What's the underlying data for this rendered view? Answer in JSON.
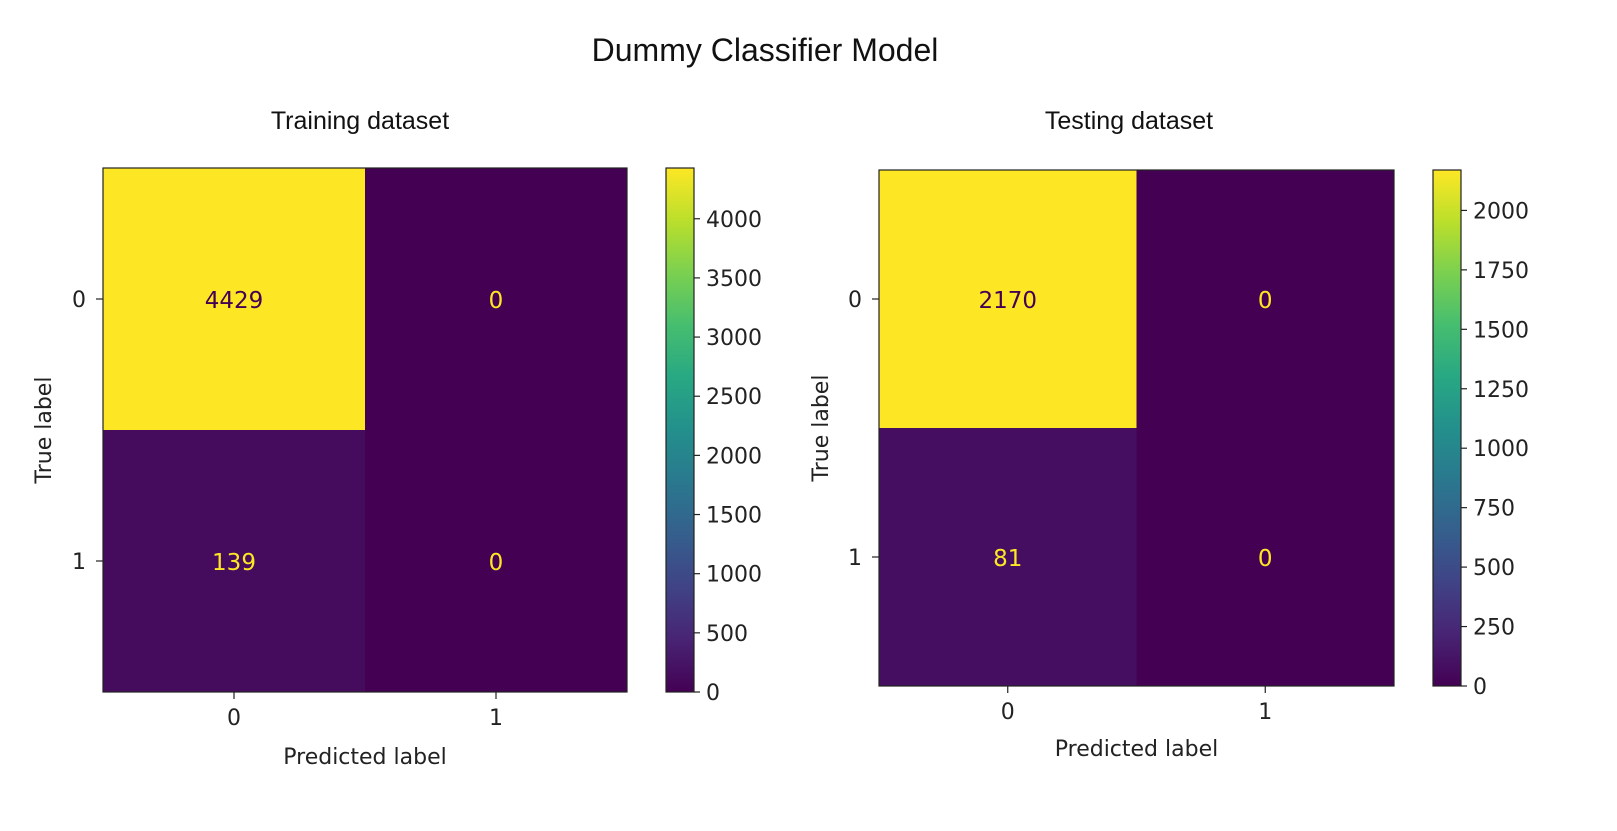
{
  "figure": {
    "title": "Dummy Classifier Model"
  },
  "chart_data": [
    {
      "type": "heatmap",
      "title": "Training dataset",
      "xlabel": "Predicted label",
      "ylabel": "True label",
      "x_ticks": [
        "0",
        "1"
      ],
      "y_ticks": [
        "0",
        "1"
      ],
      "matrix": [
        [
          4429,
          0
        ],
        [
          139,
          0
        ]
      ],
      "colorbar": {
        "range": [
          0,
          4429
        ],
        "ticks": [
          0,
          500,
          1000,
          1500,
          2000,
          2500,
          3000,
          3500,
          4000
        ],
        "colormap": "viridis"
      },
      "grid": false
    },
    {
      "type": "heatmap",
      "title": "Testing dataset",
      "xlabel": "Predicted label",
      "ylabel": "True label",
      "x_ticks": [
        "0",
        "1"
      ],
      "y_ticks": [
        "0",
        "1"
      ],
      "matrix": [
        [
          2170,
          0
        ],
        [
          81,
          0
        ]
      ],
      "colorbar": {
        "range": [
          0,
          2170
        ],
        "ticks": [
          0,
          250,
          500,
          750,
          1000,
          1250,
          1500,
          1750,
          2000
        ],
        "colormap": "viridis"
      },
      "grid": false
    }
  ],
  "colors": {
    "low": "#440154",
    "high": "#fde725",
    "low_text": "#fde725",
    "high_text": "#440154"
  }
}
